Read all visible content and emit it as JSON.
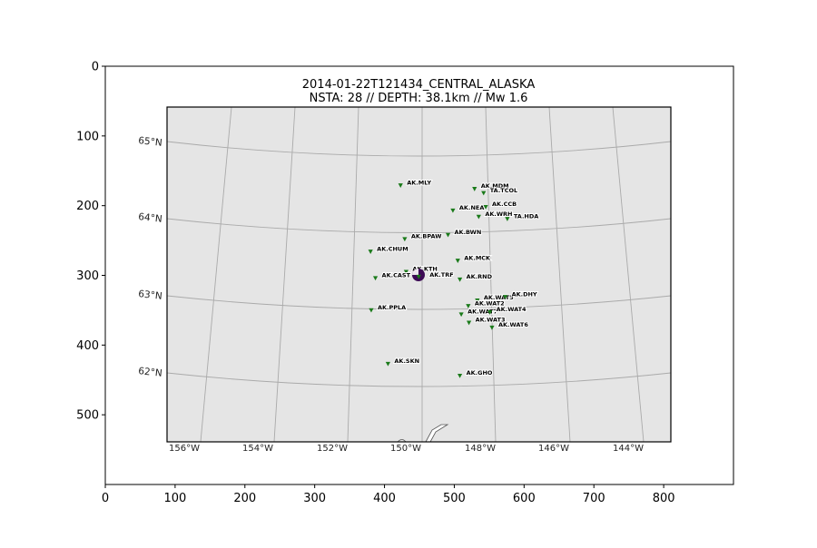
{
  "chart_data": {
    "type": "scatter",
    "title": "2014-01-22T121434_CENTRAL_ALASKA",
    "subtitle": "NSTA: 28 // DEPTH: 38.1km // Mw 1.6",
    "xlim": [
      0,
      900
    ],
    "ylim": [
      600,
      0
    ],
    "x_ticks": [
      "0",
      "100",
      "200",
      "300",
      "400",
      "500",
      "600",
      "700",
      "800"
    ],
    "y_ticks": [
      "0",
      "100",
      "200",
      "300",
      "400",
      "500"
    ],
    "grid": true,
    "colors": {
      "frame": "#000000",
      "map_background": "#e5e5e5",
      "graticule": "#aaaaaa",
      "station": "#1a7a1a",
      "event": "#3c0a55"
    },
    "lat_labels": [
      "65°N",
      "64°N",
      "63°N",
      "62°N"
    ],
    "lon_labels": [
      "156°W",
      "154°W",
      "152°W",
      "150°W",
      "148°W",
      "146°W",
      "144°W"
    ],
    "event": {
      "label": "AK.TRF",
      "x": 449,
      "y": 302
    },
    "stations": [
      {
        "label": "AK.MLY",
        "x": 423,
        "y": 171
      },
      {
        "label": "AK.MDM",
        "x": 529,
        "y": 176
      },
      {
        "label": "TA.TCOL",
        "x": 542,
        "y": 182
      },
      {
        "label": "AK.CCB",
        "x": 545,
        "y": 202
      },
      {
        "label": "AK.NEA",
        "x": 498,
        "y": 207
      },
      {
        "label": "AK.WRH",
        "x": 535,
        "y": 216
      },
      {
        "label": "TA.HDA",
        "x": 576,
        "y": 219
      },
      {
        "label": "AK.BWN",
        "x": 491,
        "y": 242
      },
      {
        "label": "AK.BPAW",
        "x": 429,
        "y": 248
      },
      {
        "label": "AK.CHUM",
        "x": 380,
        "y": 266
      },
      {
        "label": "AK.MCK",
        "x": 505,
        "y": 279
      },
      {
        "label": "AK.KTH",
        "x": 431,
        "y": 295
      },
      {
        "label": "AK.CAST",
        "x": 387,
        "y": 304
      },
      {
        "label": "AK.RND",
        "x": 508,
        "y": 306
      },
      {
        "label": "AK.WAT5",
        "x": 533,
        "y": 336
      },
      {
        "label": "AK.DHY",
        "x": 573,
        "y": 331
      },
      {
        "label": "AK.WAT2",
        "x": 520,
        "y": 344
      },
      {
        "label": "AK.PPLA",
        "x": 381,
        "y": 350
      },
      {
        "label": "AK.WAT7",
        "x": 510,
        "y": 356
      },
      {
        "label": "AK.WAT4",
        "x": 551,
        "y": 353
      },
      {
        "label": "AK.WAT3",
        "x": 521,
        "y": 368
      },
      {
        "label": "AK.WAT6",
        "x": 554,
        "y": 375
      },
      {
        "label": "AK.SKN",
        "x": 405,
        "y": 427
      },
      {
        "label": "AK.GHO",
        "x": 508,
        "y": 444
      }
    ]
  }
}
